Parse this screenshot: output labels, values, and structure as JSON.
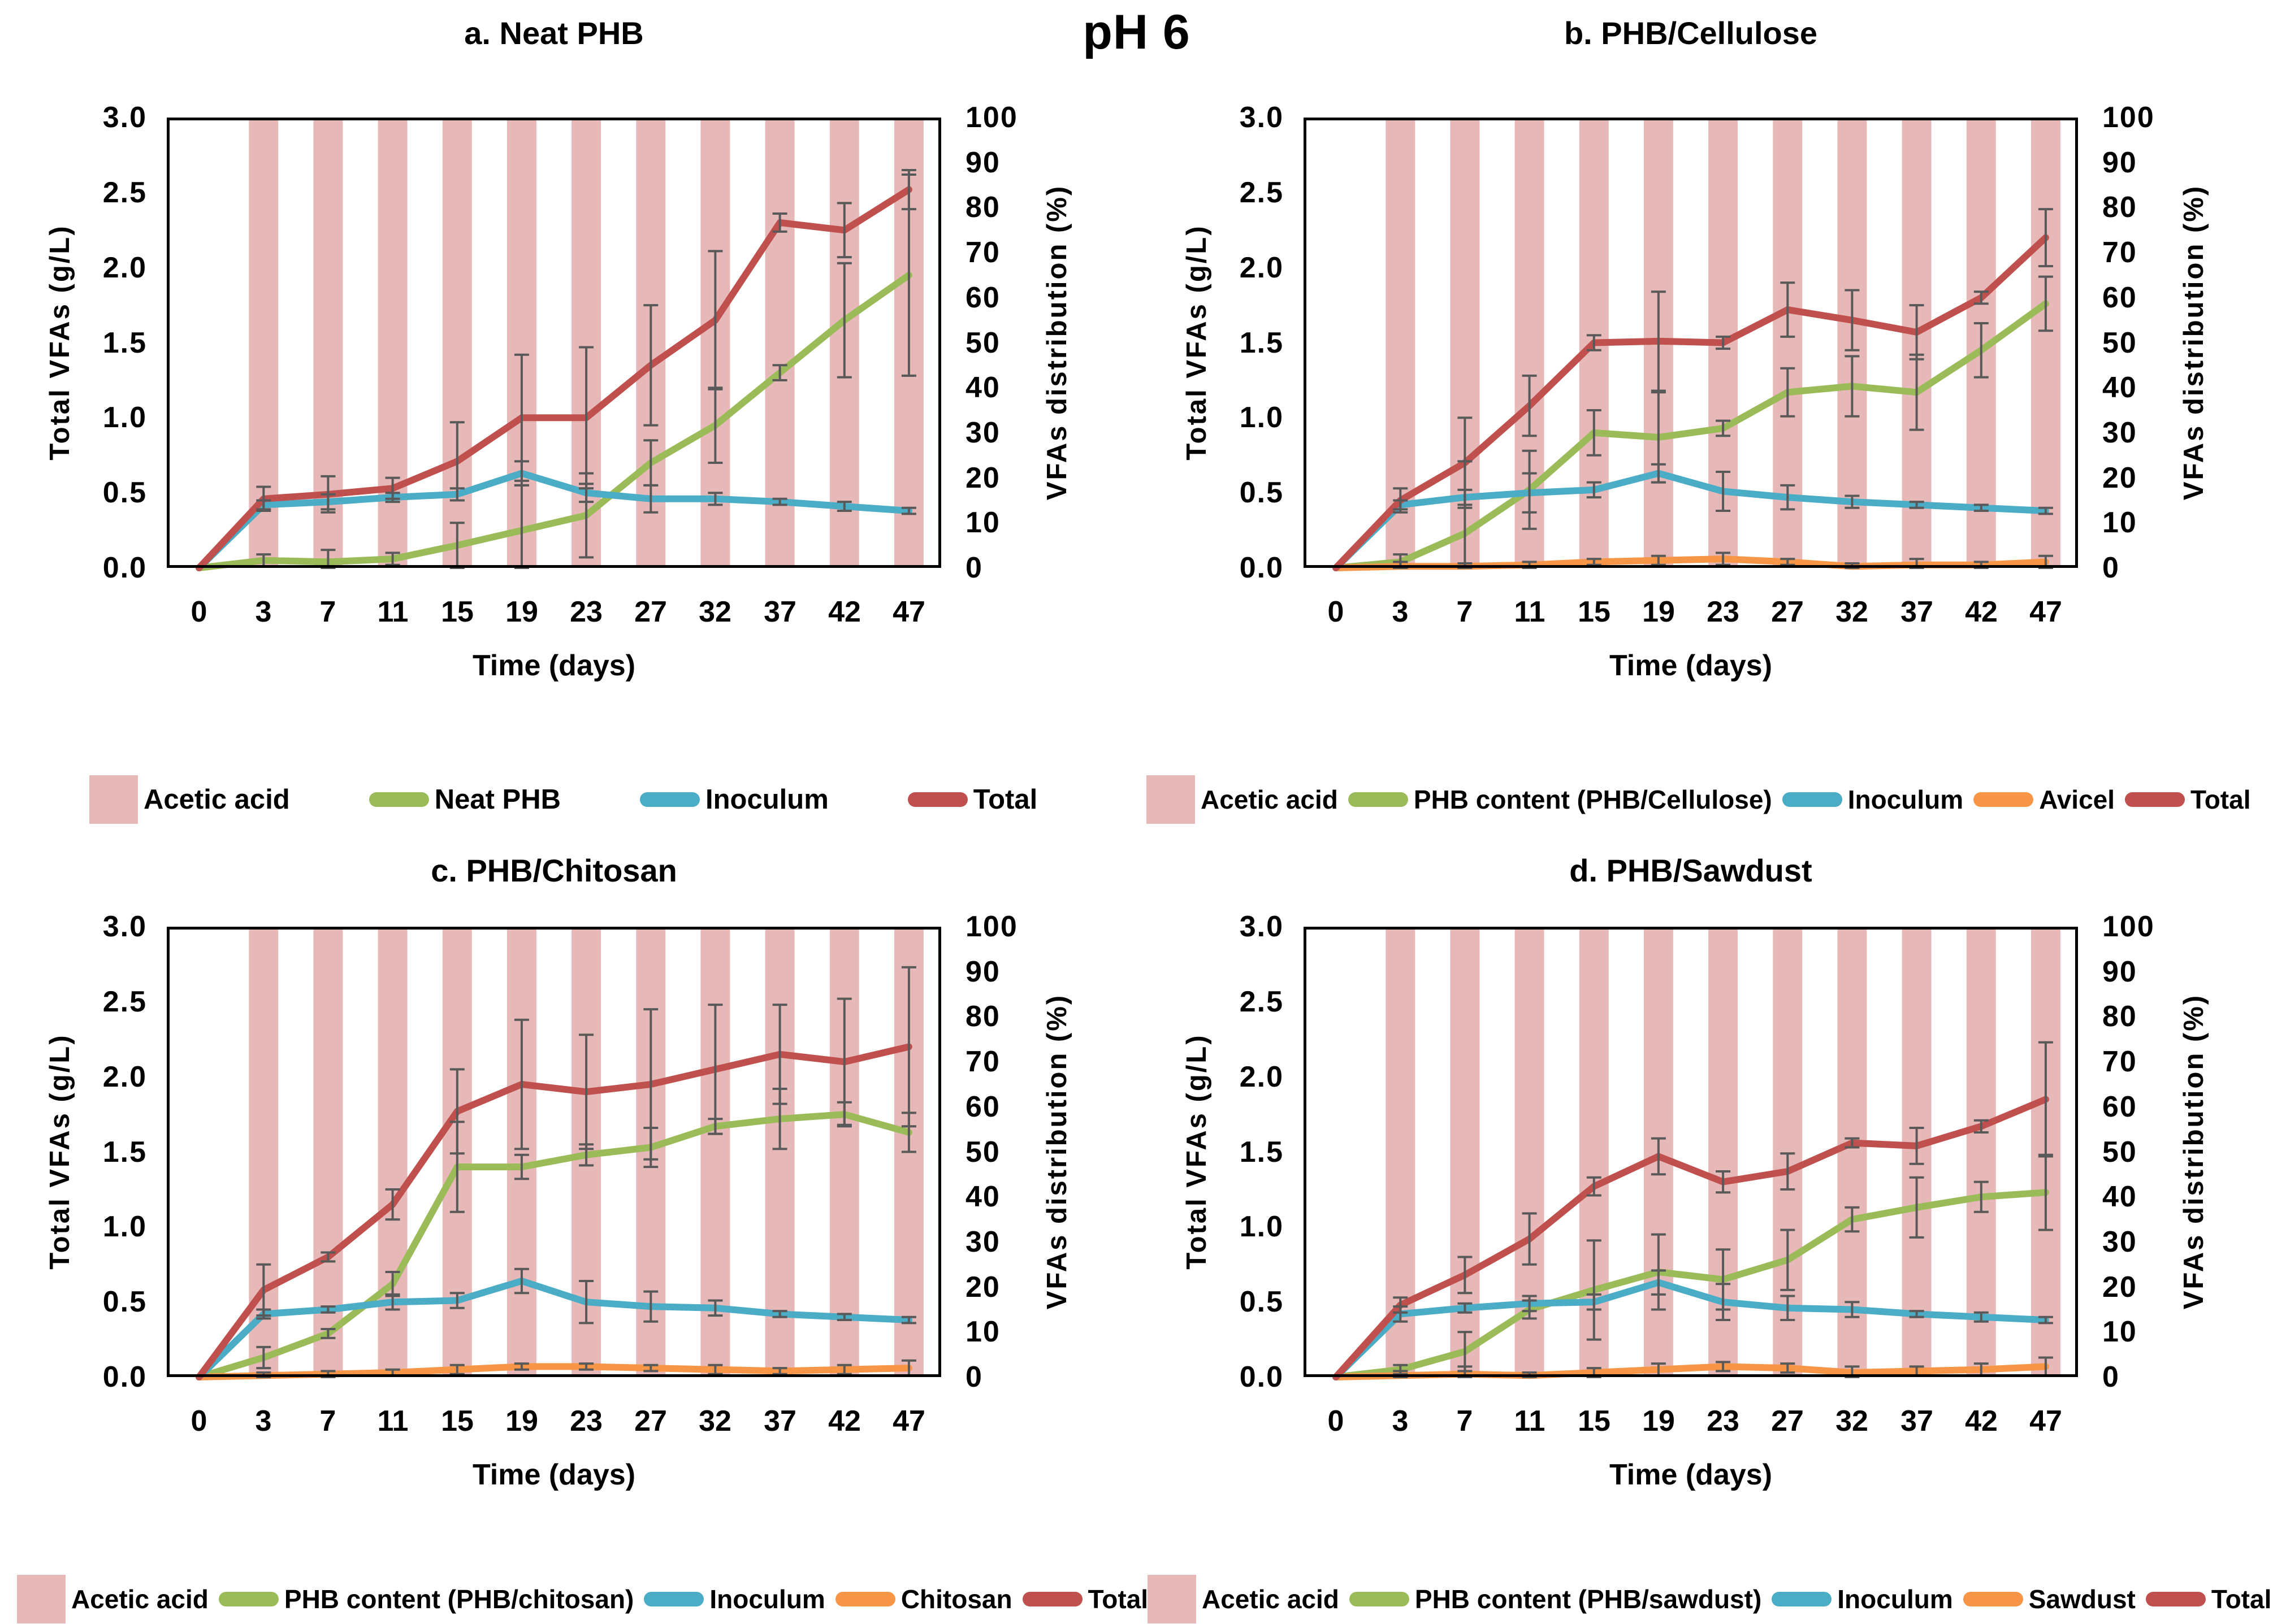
{
  "figure_title": "pH 6",
  "colors": {
    "acetic_bar": "#E6B9B8",
    "phb": "#9BBB59",
    "inoculum": "#4BACC6",
    "additive": "#F79646",
    "total": "#C0504D",
    "error": "#595959",
    "axis": "#000000",
    "background": "#FFFFFF"
  },
  "axes": {
    "left_ticks": [
      "0.0",
      "0.5",
      "1.0",
      "1.5",
      "2.0",
      "2.5",
      "3.0"
    ],
    "right_ticks": [
      "0",
      "10",
      "20",
      "30",
      "40",
      "50",
      "60",
      "70",
      "80",
      "90",
      "100"
    ],
    "grid": "off",
    "legend_position": "below"
  },
  "chart_data": [
    {
      "id": "a",
      "type": "bar+line",
      "title": "a. Neat PHB",
      "xlabel": "Time (days)",
      "ylabel_left": "Total VFAs (g/L)",
      "ylabel_right": "VFAs distribution (%)",
      "ylim_left": [
        0,
        3.0
      ],
      "ylim_right": [
        0,
        100
      ],
      "x": [
        0,
        3,
        7,
        11,
        15,
        19,
        23,
        27,
        32,
        37,
        42,
        47
      ],
      "bars": {
        "name": "Acetic acid",
        "axis": "right",
        "values": [
          0,
          100,
          100,
          100,
          100,
          100,
          100,
          100,
          100,
          100,
          100,
          100
        ]
      },
      "series": [
        {
          "name": "Neat PHB",
          "color_key": "phb",
          "values": [
            0,
            0.05,
            0.04,
            0.06,
            0.15,
            0.25,
            0.35,
            0.7,
            0.95,
            1.3,
            1.65,
            1.95
          ],
          "errors": [
            0,
            0.04,
            0.08,
            0.04,
            0.15,
            0.3,
            0.28,
            0.15,
            0.25,
            0.05,
            0.38,
            0.67
          ]
        },
        {
          "name": "Inoculum",
          "color_key": "inoculum",
          "values": [
            0,
            0.42,
            0.44,
            0.47,
            0.49,
            0.63,
            0.5,
            0.46,
            0.46,
            0.44,
            0.41,
            0.38
          ],
          "errors": [
            0,
            0.03,
            0.05,
            0.03,
            0.04,
            0.08,
            0.06,
            0.09,
            0.04,
            0.02,
            0.03,
            0.02
          ]
        },
        {
          "name": "Total",
          "color_key": "total",
          "values": [
            0,
            0.46,
            0.49,
            0.53,
            0.71,
            1.0,
            1.0,
            1.35,
            1.65,
            2.3,
            2.25,
            2.52
          ],
          "errors": [
            0,
            0.08,
            0.12,
            0.07,
            0.26,
            0.42,
            0.47,
            0.4,
            0.46,
            0.06,
            0.18,
            0.13
          ]
        }
      ],
      "legend_items": [
        {
          "label": "Acetic acid",
          "swatch": "bar",
          "color_key": "acetic_bar"
        },
        {
          "label": "Neat PHB",
          "swatch": "line",
          "color_key": "phb"
        },
        {
          "label": "Inoculum",
          "swatch": "line",
          "color_key": "inoculum"
        },
        {
          "label": "Total",
          "swatch": "line",
          "color_key": "total"
        }
      ]
    },
    {
      "id": "b",
      "type": "bar+line",
      "title": "b. PHB/Cellulose",
      "xlabel": "Time (days)",
      "ylabel_left": "Total VFAs (g/L)",
      "ylabel_right": "VFAs distribution (%)",
      "ylim_left": [
        0,
        3.0
      ],
      "ylim_right": [
        0,
        100
      ],
      "x": [
        0,
        3,
        7,
        11,
        15,
        19,
        23,
        27,
        32,
        37,
        42,
        47
      ],
      "bars": {
        "name": "Acetic acid",
        "axis": "right",
        "values": [
          0,
          100,
          100,
          100,
          100,
          100,
          100,
          100,
          100,
          100,
          100,
          100
        ]
      },
      "series": [
        {
          "name": "PHB content (PHB/Cellulose)",
          "color_key": "phb",
          "values": [
            0,
            0.04,
            0.23,
            0.52,
            0.9,
            0.87,
            0.93,
            1.17,
            1.21,
            1.17,
            1.45,
            1.76
          ],
          "errors": [
            0,
            0.05,
            0.48,
            0.26,
            0.15,
            0.3,
            0.05,
            0.16,
            0.2,
            0.25,
            0.18,
            0.18
          ]
        },
        {
          "name": "Avicel",
          "color_key": "additive",
          "values": [
            0,
            0.01,
            0.01,
            0.02,
            0.04,
            0.05,
            0.06,
            0.04,
            0.01,
            0.02,
            0.02,
            0.04
          ],
          "errors": [
            0,
            0.03,
            0.02,
            0.02,
            0.02,
            0.03,
            0.04,
            0.02,
            0.02,
            0.04,
            0.02,
            0.04
          ]
        },
        {
          "name": "Inoculum",
          "color_key": "inoculum",
          "values": [
            0,
            0.42,
            0.47,
            0.5,
            0.52,
            0.63,
            0.51,
            0.47,
            0.44,
            0.42,
            0.4,
            0.38
          ],
          "errors": [
            0,
            0.03,
            0.05,
            0.13,
            0.05,
            0.06,
            0.13,
            0.08,
            0.04,
            0.02,
            0.02,
            0.02
          ]
        },
        {
          "name": "Total",
          "color_key": "total",
          "values": [
            0,
            0.45,
            0.7,
            1.08,
            1.5,
            1.51,
            1.5,
            1.72,
            1.65,
            1.57,
            1.8,
            2.2
          ],
          "errors": [
            0,
            0.08,
            0.3,
            0.2,
            0.05,
            0.33,
            0.04,
            0.18,
            0.2,
            0.18,
            0.04,
            0.19
          ]
        }
      ],
      "legend_items": [
        {
          "label": "Acetic acid",
          "swatch": "bar",
          "color_key": "acetic_bar"
        },
        {
          "label": "PHB content (PHB/Cellulose)",
          "swatch": "line",
          "color_key": "phb"
        },
        {
          "label": "Inoculum",
          "swatch": "line",
          "color_key": "inoculum"
        },
        {
          "label": "Avicel",
          "swatch": "line",
          "color_key": "additive"
        },
        {
          "label": "Total",
          "swatch": "line",
          "color_key": "total"
        }
      ]
    },
    {
      "id": "c",
      "type": "bar+line",
      "title": "c. PHB/Chitosan",
      "xlabel": "Time (days)",
      "ylabel_left": "Total VFAs (g/L)",
      "ylabel_right": "VFAs distribution (%)",
      "ylim_left": [
        0,
        3.0
      ],
      "ylim_right": [
        0,
        100
      ],
      "x": [
        0,
        3,
        7,
        11,
        15,
        19,
        23,
        27,
        32,
        37,
        42,
        47
      ],
      "bars": {
        "name": "Acetic acid",
        "axis": "right",
        "values": [
          0,
          100,
          100,
          100,
          100,
          100,
          100,
          100,
          100,
          100,
          100,
          100
        ]
      },
      "series": [
        {
          "name": "PHB content (PHB/chitosan)",
          "color_key": "phb",
          "values": [
            0,
            0.13,
            0.29,
            0.62,
            1.4,
            1.4,
            1.48,
            1.53,
            1.67,
            1.72,
            1.75,
            1.63
          ],
          "errors": [
            0,
            0.07,
            0.03,
            0.08,
            0.3,
            0.08,
            0.07,
            0.13,
            0.05,
            0.2,
            0.08,
            0.13
          ]
        },
        {
          "name": "Chitosan",
          "color_key": "additive",
          "values": [
            0,
            0.01,
            0.02,
            0.03,
            0.05,
            0.07,
            0.07,
            0.06,
            0.05,
            0.04,
            0.05,
            0.06
          ],
          "errors": [
            0,
            0.02,
            0.02,
            0.02,
            0.03,
            0.02,
            0.02,
            0.02,
            0.03,
            0.02,
            0.03,
            0.05
          ]
        },
        {
          "name": "Inoculum",
          "color_key": "inoculum",
          "values": [
            0,
            0.42,
            0.45,
            0.5,
            0.51,
            0.64,
            0.5,
            0.47,
            0.46,
            0.42,
            0.4,
            0.38
          ],
          "errors": [
            0,
            0.03,
            0.02,
            0.05,
            0.05,
            0.08,
            0.14,
            0.1,
            0.05,
            0.02,
            0.02,
            0.02
          ]
        },
        {
          "name": "Total",
          "color_key": "total",
          "values": [
            0,
            0.58,
            0.8,
            1.15,
            1.77,
            1.95,
            1.9,
            1.95,
            2.05,
            2.15,
            2.1,
            2.2
          ],
          "errors": [
            0,
            0.17,
            0.03,
            0.1,
            0.28,
            0.43,
            0.38,
            0.5,
            0.43,
            0.33,
            0.42,
            0.53
          ]
        }
      ],
      "legend_items": [
        {
          "label": "Acetic acid",
          "swatch": "bar",
          "color_key": "acetic_bar"
        },
        {
          "label": "PHB content (PHB/chitosan)",
          "swatch": "line",
          "color_key": "phb"
        },
        {
          "label": "Inoculum",
          "swatch": "line",
          "color_key": "inoculum"
        },
        {
          "label": "Chitosan",
          "swatch": "line",
          "color_key": "additive"
        },
        {
          "label": "Total",
          "swatch": "line",
          "color_key": "total"
        }
      ]
    },
    {
      "id": "d",
      "type": "bar+line",
      "title": "d. PHB/Sawdust",
      "xlabel": "Time (days)",
      "ylabel_left": "Total VFAs (g/L)",
      "ylabel_right": "VFAs distribution (%)",
      "ylim_left": [
        0,
        3.0
      ],
      "ylim_right": [
        0,
        100
      ],
      "x": [
        0,
        3,
        7,
        11,
        15,
        19,
        23,
        27,
        32,
        37,
        42,
        47
      ],
      "bars": {
        "name": "Acetic acid",
        "axis": "right",
        "values": [
          0,
          100,
          100,
          100,
          100,
          100,
          100,
          100,
          100,
          100,
          100,
          100
        ]
      },
      "series": [
        {
          "name": "PHB content (PHB/sawdust)",
          "color_key": "phb",
          "values": [
            0,
            0.05,
            0.17,
            0.45,
            0.58,
            0.7,
            0.65,
            0.78,
            1.05,
            1.13,
            1.2,
            1.23
          ],
          "errors": [
            0,
            0.03,
            0.13,
            0.06,
            0.33,
            0.25,
            0.2,
            0.2,
            0.08,
            0.2,
            0.1,
            0.25
          ]
        },
        {
          "name": "Sawdust",
          "color_key": "additive",
          "values": [
            0,
            0.01,
            0.02,
            0.01,
            0.03,
            0.05,
            0.07,
            0.06,
            0.03,
            0.04,
            0.05,
            0.07
          ],
          "errors": [
            0,
            0.03,
            0.05,
            0.02,
            0.03,
            0.04,
            0.03,
            0.03,
            0.04,
            0.03,
            0.04,
            0.06
          ]
        },
        {
          "name": "Inoculum",
          "color_key": "inoculum",
          "values": [
            0,
            0.42,
            0.46,
            0.49,
            0.5,
            0.63,
            0.5,
            0.46,
            0.45,
            0.42,
            0.4,
            0.38
          ],
          "errors": [
            0,
            0.05,
            0.03,
            0.05,
            0.05,
            0.08,
            0.12,
            0.08,
            0.05,
            0.02,
            0.03,
            0.02
          ]
        },
        {
          "name": "Total",
          "color_key": "total",
          "values": [
            0,
            0.48,
            0.68,
            0.92,
            1.27,
            1.47,
            1.3,
            1.37,
            1.56,
            1.54,
            1.67,
            1.85
          ],
          "errors": [
            0,
            0.05,
            0.12,
            0.17,
            0.06,
            0.12,
            0.07,
            0.12,
            0.03,
            0.12,
            0.04,
            0.38
          ]
        }
      ],
      "legend_items": [
        {
          "label": "Acetic acid",
          "swatch": "bar",
          "color_key": "acetic_bar"
        },
        {
          "label": "PHB content (PHB/sawdust)",
          "swatch": "line",
          "color_key": "phb"
        },
        {
          "label": "Inoculum",
          "swatch": "line",
          "color_key": "inoculum"
        },
        {
          "label": "Sawdust",
          "swatch": "line",
          "color_key": "additive"
        },
        {
          "label": "Total",
          "swatch": "line",
          "color_key": "total"
        }
      ]
    }
  ]
}
